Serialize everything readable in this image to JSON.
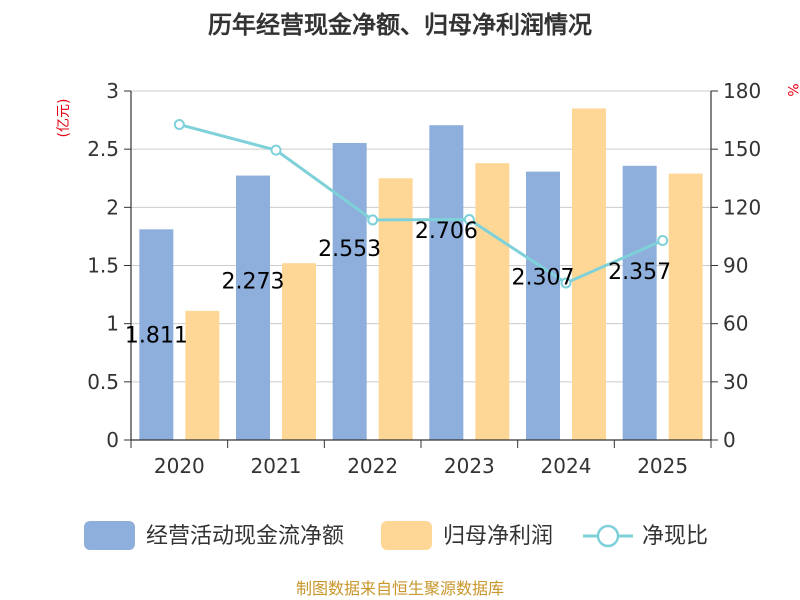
{
  "colors": {
    "cash_flow": "#8eaedc",
    "net_profit": "#fed797",
    "ratio": "#7fd1d9",
    "axis": "#333333",
    "grid": "#cccccc",
    "unit": "#e60012",
    "source": "#c8962a"
  },
  "source_text": "制图数据来自恒生聚源数据库",
  "chart_data": {
    "type": "bar",
    "title": "历年经营现金净额、归母净利润情况",
    "categories": [
      "2020",
      "2021",
      "2022",
      "2023",
      "2024",
      "2025"
    ],
    "y_left": {
      "unit_label": "(亿元)",
      "min": 0,
      "max": 3,
      "ticks": [
        "0",
        "0.5",
        "1",
        "1.5",
        "2",
        "2.5",
        "3"
      ]
    },
    "y_right": {
      "unit_label": "%",
      "min": 0,
      "max": 180,
      "ticks": [
        "0",
        "30",
        "60",
        "90",
        "120",
        "150",
        "180"
      ]
    },
    "series": [
      {
        "name": "经营活动现金流净额",
        "type": "bar",
        "axis": "left",
        "values": [
          1.811,
          2.273,
          2.553,
          2.706,
          2.307,
          2.357
        ],
        "labels": [
          "1.811",
          "2.273",
          "2.553",
          "2.706",
          "2.307",
          "2.357"
        ]
      },
      {
        "name": "归母净利润",
        "type": "bar",
        "axis": "left",
        "values": [
          1.11,
          1.52,
          2.25,
          2.38,
          2.85,
          2.29
        ]
      },
      {
        "name": "净现比",
        "type": "line",
        "axis": "right",
        "values": [
          162.7,
          149.5,
          113.5,
          113.7,
          81.0,
          102.9
        ]
      }
    ]
  }
}
